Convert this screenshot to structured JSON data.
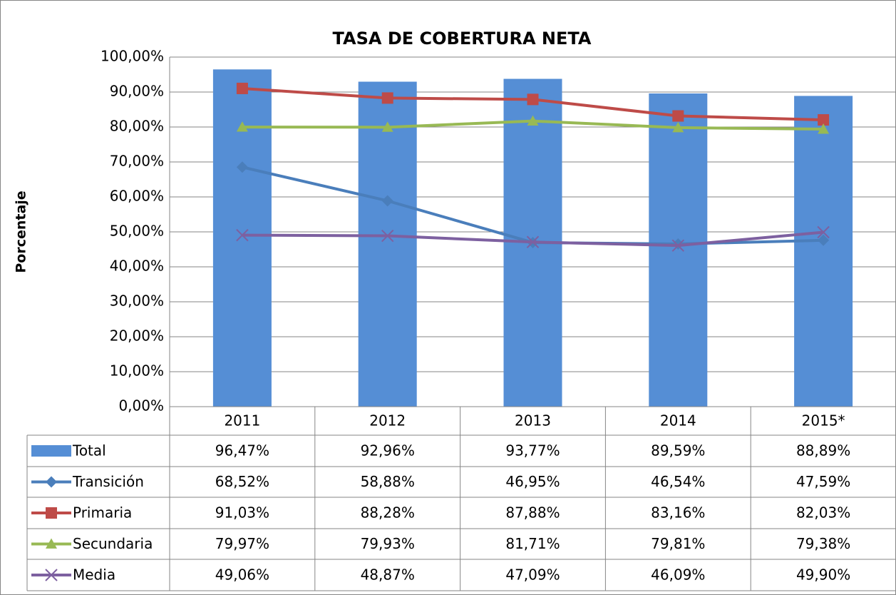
{
  "chart_data": {
    "type": "bar",
    "title": "TASA DE COBERTURA NETA",
    "y_label": "Porcentaje",
    "categories": [
      "2011",
      "2012",
      "2013",
      "2014",
      "2015*"
    ],
    "ylim": [
      0,
      100
    ],
    "yticks": [
      {
        "value": 0,
        "label": "0,00%"
      },
      {
        "value": 10,
        "label": "10,00%"
      },
      {
        "value": 20,
        "label": "20,00%"
      },
      {
        "value": 30,
        "label": "30,00%"
      },
      {
        "value": 40,
        "label": "40,00%"
      },
      {
        "value": 50,
        "label": "50,00%"
      },
      {
        "value": 60,
        "label": "60,00%"
      },
      {
        "value": 70,
        "label": "70,00%"
      },
      {
        "value": 80,
        "label": "80,00%"
      },
      {
        "value": 90,
        "label": "90,00%"
      },
      {
        "value": 100,
        "label": "100,00%"
      }
    ],
    "grid": true,
    "series": [
      {
        "name": "Total",
        "type": "bar",
        "color": "#558ed5",
        "values": [
          96.47,
          92.96,
          93.77,
          89.59,
          88.89
        ],
        "value_labels": [
          "96,47%",
          "92,96%",
          "93,77%",
          "89,59%",
          "88,89%"
        ]
      },
      {
        "name": "Transición",
        "type": "line",
        "marker": "diamond",
        "color": "#4a7ebb",
        "values": [
          68.52,
          58.88,
          46.95,
          46.54,
          47.59
        ],
        "value_labels": [
          "68,52%",
          "58,88%",
          "46,95%",
          "46,54%",
          "47,59%"
        ]
      },
      {
        "name": "Primaria",
        "type": "line",
        "marker": "square",
        "color": "#be4b48",
        "values": [
          91.03,
          88.28,
          87.88,
          83.16,
          82.03
        ],
        "value_labels": [
          "91,03%",
          "88,28%",
          "87,88%",
          "83,16%",
          "82,03%"
        ]
      },
      {
        "name": "Secundaria",
        "type": "line",
        "marker": "triangle",
        "color": "#98b954",
        "values": [
          79.97,
          79.93,
          81.71,
          79.81,
          79.38
        ],
        "value_labels": [
          "79,97%",
          "79,93%",
          "81,71%",
          "79,81%",
          "79,38%"
        ]
      },
      {
        "name": "Media",
        "type": "line",
        "marker": "x",
        "color": "#7d60a0",
        "values": [
          49.06,
          48.87,
          47.09,
          46.09,
          49.9
        ],
        "value_labels": [
          "49,06%",
          "48,87%",
          "47,09%",
          "46,09%",
          "49,90%"
        ]
      }
    ]
  }
}
